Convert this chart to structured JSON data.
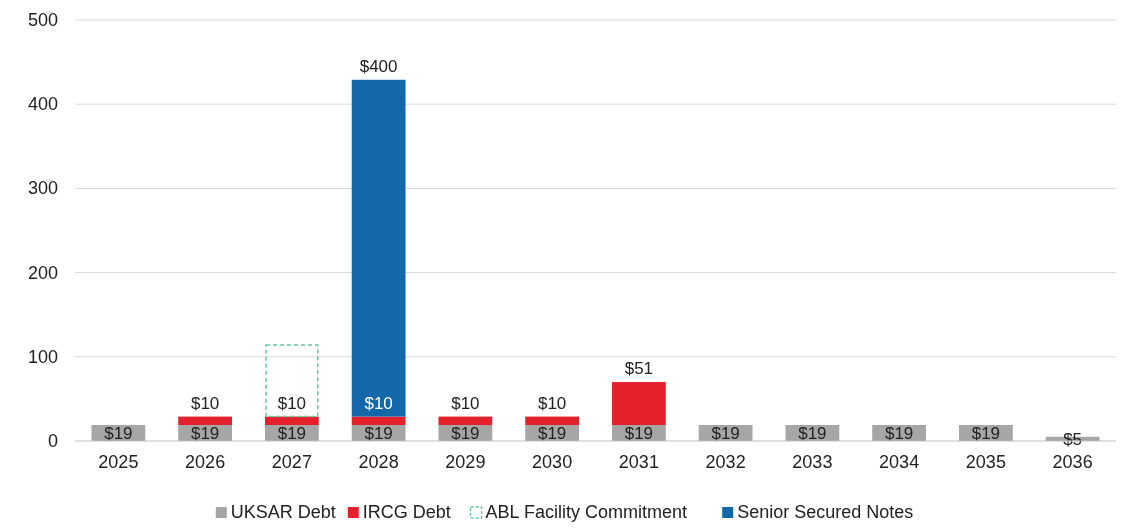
{
  "chart_data": {
    "type": "bar",
    "stacked": true,
    "categories": [
      "2025",
      "2026",
      "2027",
      "2028",
      "2029",
      "2030",
      "2031",
      "2032",
      "2033",
      "2034",
      "2035",
      "2036"
    ],
    "series": [
      {
        "name": "UKSAR Debt",
        "color": "#a6a6a6",
        "values": [
          19,
          19,
          19,
          19,
          19,
          19,
          19,
          19,
          19,
          19,
          19,
          5
        ],
        "value_labels": [
          "$19",
          "$19",
          "$19",
          "$19",
          "$19",
          "$19",
          "$19",
          "$19",
          "$19",
          "$19",
          "$19",
          "$5"
        ]
      },
      {
        "name": "IRCG Debt",
        "color": "#e3202b",
        "values": [
          null,
          10,
          10,
          10,
          10,
          10,
          51,
          null,
          null,
          null,
          null,
          null
        ],
        "value_labels": [
          null,
          "$10",
          "$10",
          "$10",
          "$10",
          "$10",
          "$51",
          null,
          null,
          null,
          null,
          null
        ]
      },
      {
        "name": "ABL Facility Commitment",
        "color": "#5ecb9b",
        "line_style": "dashed",
        "values": [
          null,
          null,
          85,
          null,
          null,
          null,
          null,
          null,
          null,
          null,
          null,
          null
        ]
      },
      {
        "name": "Senior Secured Notes",
        "color": "#1467a8",
        "values": [
          null,
          null,
          null,
          400,
          null,
          null,
          null,
          null,
          null,
          null,
          null,
          null
        ],
        "value_labels": [
          null,
          null,
          null,
          "$400",
          null,
          null,
          null,
          null,
          null,
          null,
          null,
          null
        ]
      }
    ],
    "ylim": [
      0,
      500
    ],
    "yticks": [
      0,
      100,
      200,
      300,
      400,
      500
    ],
    "grid": "y",
    "legend": "bottom"
  }
}
